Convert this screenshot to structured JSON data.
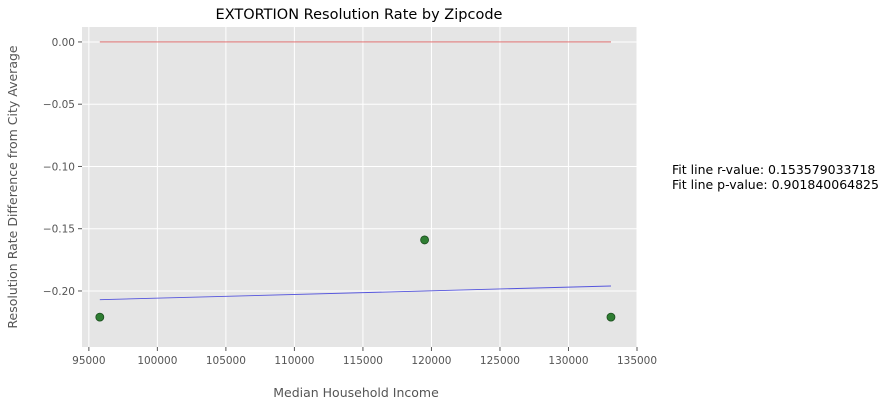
{
  "chart_data": {
    "type": "scatter",
    "title": "EXTORTION Resolution Rate by Zipcode",
    "xlabel": "Median Household Income",
    "ylabel": "Resolution Rate Difference from City Average",
    "xlim": [
      94500,
      135000
    ],
    "ylim": [
      -0.245,
      0.012
    ],
    "x_ticks": [
      95000,
      100000,
      105000,
      110000,
      115000,
      120000,
      125000,
      130000,
      135000
    ],
    "y_ticks": [
      0.0,
      -0.05,
      -0.1,
      -0.15,
      -0.2
    ],
    "x_tick_labels": [
      "95000",
      "100000",
      "105000",
      "110000",
      "115000",
      "120000",
      "125000",
      "130000",
      "135000"
    ],
    "y_tick_labels": [
      "0.00",
      "−0.05",
      "−0.10",
      "−0.15",
      "−0.20"
    ],
    "grid": true,
    "points": [
      {
        "x": 95800,
        "y": -0.221
      },
      {
        "x": 119500,
        "y": -0.159
      },
      {
        "x": 133100,
        "y": -0.221
      }
    ],
    "fit_line": {
      "x": [
        95800,
        133100
      ],
      "y": [
        -0.207,
        -0.196
      ]
    },
    "reference_line": {
      "x": [
        95800,
        133100
      ],
      "y": [
        0.0,
        0.0
      ]
    },
    "colors": {
      "points": "#2e7d32",
      "fit_line": "#5555dd",
      "reference_line": "#e06060",
      "plot_background": "#e5e5e5",
      "grid": "#ffffff"
    }
  },
  "annotation": {
    "r_value": "Fit line r-value: 0.153579033718",
    "p_value": "Fit line p-value: 0.901840064825"
  }
}
